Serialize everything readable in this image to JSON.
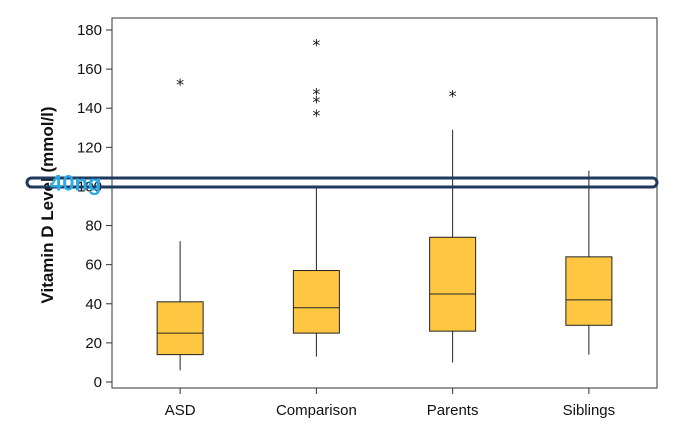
{
  "chart_data": {
    "type": "box",
    "title": "",
    "xlabel": "",
    "ylabel": "Vitamin D Level (mmol/l)",
    "ylim": [
      0,
      180
    ],
    "yticks": [
      0,
      20,
      40,
      60,
      80,
      100,
      120,
      140,
      160,
      180
    ],
    "categories": [
      "ASD",
      "Comparison",
      "Parents",
      "Siblings"
    ],
    "boxes": [
      {
        "name": "ASD",
        "min": 6,
        "q1": 14,
        "median": 25,
        "q3": 41,
        "max": 72,
        "outliers": [
          153
        ]
      },
      {
        "name": "Comparison",
        "min": 13,
        "q1": 25,
        "median": 38,
        "q3": 57,
        "max": 99,
        "outliers": [
          137,
          144,
          148,
          173
        ]
      },
      {
        "name": "Parents",
        "min": 10,
        "q1": 26,
        "median": 45,
        "q3": 74,
        "max": 129,
        "outliers": [
          147
        ]
      },
      {
        "name": "Siblings",
        "min": 14,
        "q1": 29,
        "median": 42,
        "q3": 64,
        "max": 108,
        "outliers": []
      }
    ],
    "outlier_marker": "*",
    "box_color": "#ffc741",
    "box_edge": "#222222",
    "annotation": {
      "text": "40ng",
      "value": 102,
      "color": "#29a9e6",
      "band_color": "#1f3a5c"
    }
  }
}
